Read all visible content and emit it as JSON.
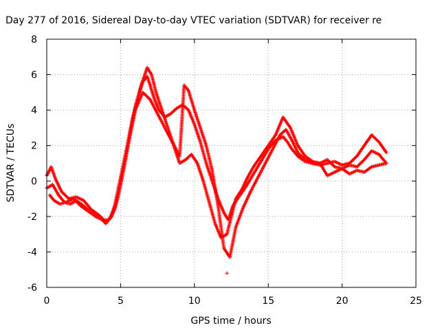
{
  "chart_data": {
    "type": "scatter",
    "title": "Day 277 of 2016, Sidereal Day-to-day VTEC variation (SDTVAR) for receiver re",
    "xlabel": "GPS time / hours",
    "ylabel": "SDTVAR / TECUs",
    "xlim": [
      0,
      25
    ],
    "ylim": [
      -6,
      8
    ],
    "xticks": [
      "0",
      "5",
      "10",
      "15",
      "20",
      "25"
    ],
    "yticks": [
      "-6",
      "-4",
      "-2",
      "0",
      "2",
      "4",
      "6",
      "8"
    ],
    "grid": true,
    "marker": "plus",
    "color": "#ff0000",
    "series": [
      {
        "x": [
          0.0,
          0.3,
          0.6,
          1.0,
          1.5,
          2.0,
          2.5,
          3.0,
          3.5,
          4.0,
          4.3,
          4.6,
          5.0,
          5.4,
          5.8,
          6.2,
          6.5,
          6.8,
          7.0,
          7.3,
          7.6,
          8.0,
          8.4,
          8.8,
          9.2,
          9.6,
          10.0,
          10.4,
          10.8,
          11.2,
          11.6,
          12.0,
          12.3,
          12.6,
          13.0,
          13.5,
          14.0,
          14.5,
          15.0,
          15.5,
          16.0,
          16.3,
          16.6,
          17.0,
          17.5,
          18.0,
          18.5,
          19.0,
          19.5,
          20.0,
          20.5,
          21.0,
          21.5,
          22.0,
          22.5,
          23.0
        ],
        "y": [
          0.3,
          0.8,
          0.1,
          -0.6,
          -1.0,
          -0.9,
          -1.1,
          -1.6,
          -1.9,
          -2.3,
          -2.1,
          -1.4,
          0.2,
          1.8,
          3.5,
          4.8,
          5.6,
          5.9,
          5.4,
          4.6,
          4.0,
          3.6,
          3.8,
          4.1,
          4.3,
          4.0,
          3.2,
          2.2,
          1.0,
          0.0,
          -1.0,
          -1.8,
          -2.2,
          -1.4,
          -0.9,
          -0.3,
          0.4,
          1.1,
          1.8,
          2.3,
          2.5,
          2.2,
          1.8,
          1.4,
          1.1,
          1.0,
          0.9,
          1.0,
          1.1,
          0.9,
          1.0,
          1.4,
          2.0,
          2.6,
          2.2,
          1.6
        ]
      },
      {
        "x": [
          0.0,
          0.4,
          0.8,
          1.2,
          1.6,
          2.0,
          2.5,
          3.0,
          3.5,
          4.0,
          4.4,
          4.8,
          5.2,
          5.6,
          6.0,
          6.4,
          6.8,
          7.1,
          7.4,
          7.8,
          8.2,
          8.6,
          9.0,
          9.4,
          9.8,
          10.2,
          10.6,
          11.0,
          11.4,
          11.8,
          12.2,
          12.5,
          12.8,
          13.2,
          13.6,
          14.0,
          14.5,
          15.0,
          15.5,
          16.0,
          16.5,
          17.0,
          17.5,
          18.0,
          18.5,
          19.0,
          19.5,
          20.0,
          20.5,
          21.0,
          21.5,
          22.0,
          22.5,
          23.0
        ],
        "y": [
          -0.4,
          -0.2,
          -0.8,
          -1.2,
          -1.3,
          -1.1,
          -1.4,
          -1.8,
          -2.0,
          -2.4,
          -2.0,
          -1.0,
          0.6,
          2.4,
          4.2,
          5.4,
          6.4,
          6.0,
          5.0,
          4.0,
          3.0,
          2.0,
          1.0,
          1.2,
          1.5,
          1.0,
          0.0,
          -1.2,
          -2.4,
          -3.2,
          -3.0,
          -2.0,
          -1.0,
          -0.5,
          0.2,
          0.8,
          1.4,
          2.0,
          2.6,
          3.6,
          3.0,
          2.0,
          1.4,
          1.1,
          1.0,
          1.2,
          0.8,
          0.7,
          0.9,
          0.8,
          1.2,
          1.7,
          1.5,
          1.0
        ]
      },
      {
        "x": [
          0.2,
          0.5,
          0.9,
          1.3,
          1.8,
          2.3,
          2.8,
          3.3,
          3.8,
          4.2,
          4.6,
          5.0,
          5.5,
          6.0,
          6.5,
          7.0,
          7.5,
          8.0,
          8.5,
          9.0,
          9.3,
          9.6,
          10.0,
          10.4,
          10.8,
          11.2,
          11.6,
          12.0,
          12.4,
          12.8,
          13.3,
          13.8,
          14.3,
          14.8,
          15.3,
          15.8,
          16.2,
          16.6,
          17.0,
          17.5,
          18.0,
          18.5,
          19.0,
          19.5,
          20.0,
          20.5,
          21.0,
          21.5,
          22.0,
          22.5,
          23.0
        ],
        "y": [
          -0.8,
          -1.1,
          -1.3,
          -1.2,
          -1.0,
          -1.4,
          -1.7,
          -2.0,
          -2.2,
          -2.2,
          -1.6,
          -0.2,
          2.0,
          4.0,
          5.0,
          4.6,
          3.8,
          3.0,
          2.2,
          1.4,
          5.4,
          5.1,
          4.0,
          3.0,
          2.0,
          0.6,
          -1.4,
          -3.8,
          -4.3,
          -2.6,
          -1.5,
          -0.6,
          0.2,
          1.0,
          1.8,
          2.6,
          2.9,
          2.3,
          1.6,
          1.2,
          1.0,
          1.0,
          0.3,
          0.5,
          0.7,
          0.4,
          0.6,
          0.5,
          0.8,
          0.9,
          1.0
        ]
      },
      {
        "x": [
          12.2
        ],
        "y": [
          -5.2
        ]
      }
    ]
  }
}
